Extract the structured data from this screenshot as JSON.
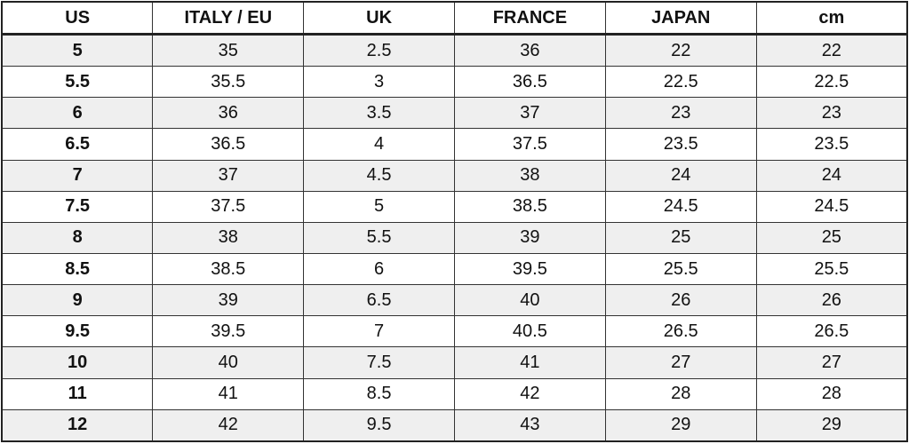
{
  "table": {
    "header": [
      "US",
      "ITALY / EU",
      "UK",
      "FRANCE",
      "JAPAN",
      "cm"
    ],
    "rows": [
      [
        "5",
        "35",
        "2.5",
        "36",
        "22",
        "22"
      ],
      [
        "5.5",
        "35.5",
        "3",
        "36.5",
        "22.5",
        "22.5"
      ],
      [
        "6",
        "36",
        "3.5",
        "37",
        "23",
        "23"
      ],
      [
        "6.5",
        "36.5",
        "4",
        "37.5",
        "23.5",
        "23.5"
      ],
      [
        "7",
        "37",
        "4.5",
        "38",
        "24",
        "24"
      ],
      [
        "7.5",
        "37.5",
        "5",
        "38.5",
        "24.5",
        "24.5"
      ],
      [
        "8",
        "38",
        "5.5",
        "39",
        "25",
        "25"
      ],
      [
        "8.5",
        "38.5",
        "6",
        "39.5",
        "25.5",
        "25.5"
      ],
      [
        "9",
        "39",
        "6.5",
        "40",
        "26",
        "26"
      ],
      [
        "9.5",
        "39.5",
        "7",
        "40.5",
        "26.5",
        "26.5"
      ],
      [
        "10",
        "40",
        "7.5",
        "41",
        "27",
        "27"
      ],
      [
        "11",
        "41",
        "8.5",
        "42",
        "28",
        "28"
      ],
      [
        "12",
        "42",
        "9.5",
        "43",
        "29",
        "29"
      ]
    ]
  }
}
